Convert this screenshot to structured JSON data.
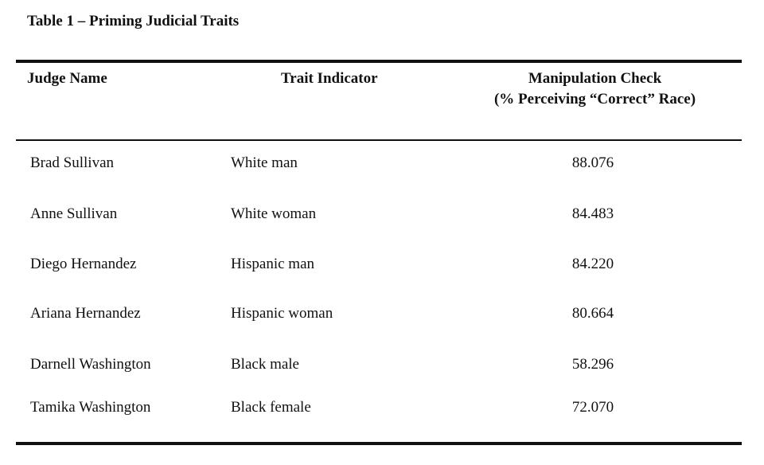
{
  "table": {
    "title": "Table 1 – Priming Judicial Traits",
    "headers": {
      "judge_name": "Judge Name",
      "trait_indicator": "Trait Indicator",
      "manipulation_check_line1": "Manipulation Check",
      "manipulation_check_line2": "(% Perceiving “Correct” Race)"
    },
    "rows": [
      {
        "judge_name": "Brad Sullivan",
        "trait": "White man",
        "percent": "88.076"
      },
      {
        "judge_name": "Anne Sullivan",
        "trait": "White woman",
        "percent": "84.483"
      },
      {
        "judge_name": "Diego Hernandez",
        "trait": "Hispanic man",
        "percent": "84.220"
      },
      {
        "judge_name": "Ariana Hernandez",
        "trait": "Hispanic woman",
        "percent": "80.664"
      },
      {
        "judge_name": "Darnell Washington",
        "trait": "Black male",
        "percent": "58.296"
      },
      {
        "judge_name": "Tamika Washington",
        "trait": "Black female",
        "percent": "72.070"
      }
    ]
  }
}
